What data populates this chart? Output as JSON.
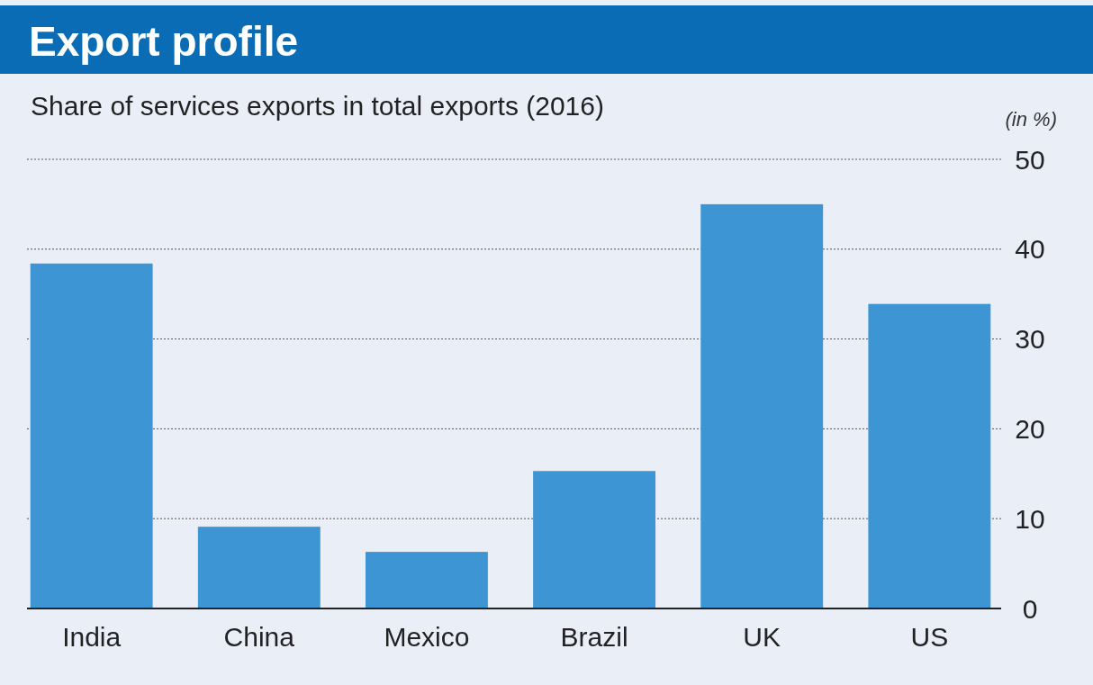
{
  "chart_data": {
    "type": "bar",
    "title": "Export profile",
    "subtitle": "Share of services exports in total exports (2016)",
    "ylabel": "(in %)",
    "categories": [
      "India",
      "China",
      "Mexico",
      "Brazil",
      "UK",
      "US"
    ],
    "values": [
      38.4,
      9.1,
      6.3,
      15.3,
      45.0,
      33.9
    ],
    "color": "#3d95d3",
    "ylim": [
      0,
      50
    ],
    "yticks": [
      0,
      10,
      20,
      30,
      40,
      50
    ],
    "grid": "y"
  }
}
